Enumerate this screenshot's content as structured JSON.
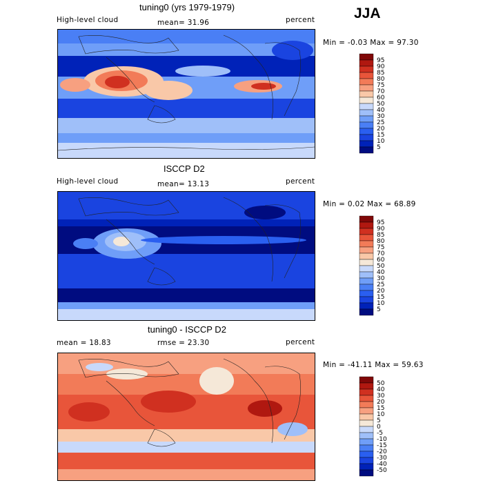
{
  "season": "JJA",
  "chart_data": [
    {
      "type": "heatmap",
      "title": "tuning0 (yrs 1979-1979)",
      "left_label": "High-level cloud",
      "mean_label": "mean=  31.96",
      "units": "percent",
      "stats": "Min =   -0.03 Max =  97.30",
      "min": -0.03,
      "max": 97.3,
      "mean": 31.96,
      "levels": [
        "5",
        "10",
        "15",
        "20",
        "25",
        "30",
        "40",
        "50",
        "60",
        "70",
        "75",
        "80",
        "85",
        "90",
        "95"
      ],
      "colors": [
        "#000c80",
        "#0022b8",
        "#1a44e0",
        "#2a5ff0",
        "#4a7ff5",
        "#6f9ef8",
        "#9fbff9",
        "#c8d9fb",
        "#f5e8d8",
        "#f9c8a8",
        "#f7a080",
        "#f27b58",
        "#e8553a",
        "#d03020",
        "#b01810",
        "#800808"
      ]
    },
    {
      "type": "heatmap",
      "title": "ISCCP D2",
      "left_label": "High-level cloud",
      "mean_label": "mean=  13.13",
      "units": "percent",
      "stats": "Min =   0.02 Max =  68.89",
      "min": 0.02,
      "max": 68.89,
      "mean": 13.13,
      "levels": [
        "5",
        "10",
        "15",
        "20",
        "25",
        "30",
        "40",
        "50",
        "60",
        "70",
        "75",
        "80",
        "85",
        "90",
        "95"
      ],
      "colors": [
        "#000c80",
        "#0022b8",
        "#1a44e0",
        "#2a5ff0",
        "#4a7ff5",
        "#6f9ef8",
        "#9fbff9",
        "#c8d9fb",
        "#f5e8d8",
        "#f9c8a8",
        "#f7a080",
        "#f27b58",
        "#e8553a",
        "#d03020",
        "#b01810",
        "#800808"
      ]
    },
    {
      "type": "heatmap",
      "title": "tuning0 - ISCCP D2",
      "left_label": "mean =   18.83",
      "mean_label": "rmse =   23.30",
      "units": "percent",
      "stats": "Min =  -41.11  Max =  59.63",
      "min": -41.11,
      "max": 59.63,
      "mean": 18.83,
      "rmse": 23.3,
      "levels": [
        "-50",
        "-40",
        "-30",
        "-20",
        "-15",
        "-10",
        "-5",
        "0",
        "5",
        "10",
        "15",
        "20",
        "30",
        "40",
        "50"
      ],
      "colors": [
        "#000c80",
        "#0022b8",
        "#1a44e0",
        "#2a5ff0",
        "#4a7ff5",
        "#6f9ef8",
        "#9fbff9",
        "#c8d9fb",
        "#f5e8d8",
        "#f9c8a8",
        "#f7a080",
        "#f27b58",
        "#e8553a",
        "#d03020",
        "#b01810",
        "#800808"
      ]
    }
  ]
}
